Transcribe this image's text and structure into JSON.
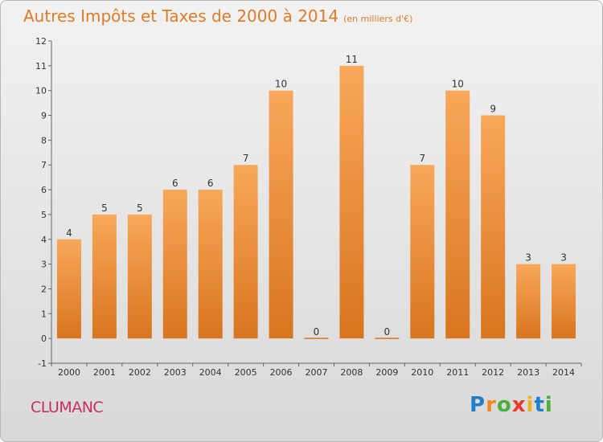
{
  "header": {
    "title": "Autres Impôts et Taxes de 2000 à 2014",
    "unit": "(en milliers d'€)"
  },
  "footer": {
    "commune": "CLUMANC",
    "logo": [
      "P",
      "r",
      "o",
      "x",
      "i",
      "t",
      "i"
    ]
  },
  "colors": {
    "bar_top": "#f8a85a",
    "bar_bottom": "#d9751f",
    "title": "#e07b27",
    "commune": "#cc2c66",
    "logo": [
      "#1f80c8",
      "#f08a1c",
      "#4caf3c",
      "#e63a2a",
      "#f0b21c",
      "#1f80c8",
      "#4caf3c"
    ]
  },
  "chart_data": {
    "type": "bar",
    "title": "Autres Impôts et Taxes de 2000 à 2014",
    "subtitle": "(en milliers d'€)",
    "categories": [
      "2000",
      "2001",
      "2002",
      "2003",
      "2004",
      "2005",
      "2006",
      "2007",
      "2008",
      "2009",
      "2010",
      "2011",
      "2012",
      "2013",
      "2014"
    ],
    "values": [
      4,
      5,
      5,
      6,
      6,
      7,
      10,
      0,
      11,
      0,
      7,
      10,
      9,
      3,
      3
    ],
    "ylim": [
      -1,
      12
    ],
    "yticks": [
      -1,
      0,
      1,
      2,
      3,
      4,
      5,
      6,
      7,
      8,
      9,
      10,
      11,
      12
    ],
    "grid": false,
    "legend": "none"
  }
}
